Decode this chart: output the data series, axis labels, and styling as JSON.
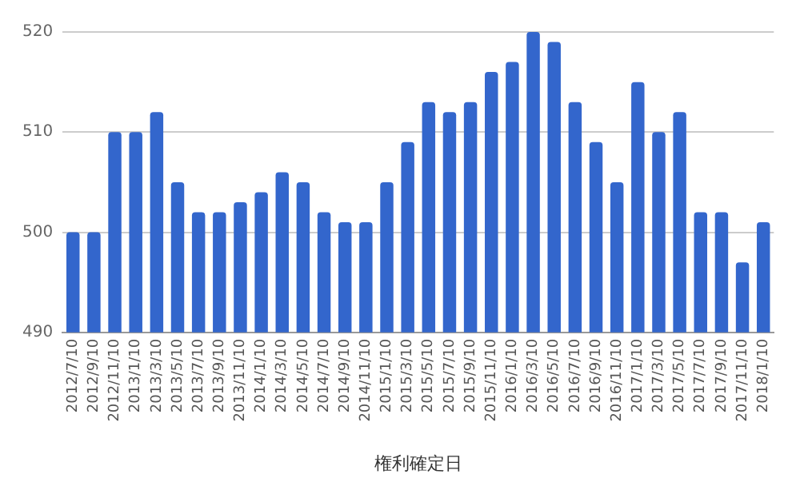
{
  "chart_data": {
    "type": "bar",
    "xlabel": "権利確定日",
    "categories": [
      "2012/7/10",
      "2012/9/10",
      "2012/11/10",
      "2013/1/10",
      "2013/3/10",
      "2013/5/10",
      "2013/7/10",
      "2013/9/10",
      "2013/11/10",
      "2014/1/10",
      "2014/3/10",
      "2014/5/10",
      "2014/7/10",
      "2014/9/10",
      "2014/11/10",
      "2015/1/10",
      "2015/3/10",
      "2015/5/10",
      "2015/7/10",
      "2015/9/10",
      "2015/11/10",
      "2016/1/10",
      "2016/3/10",
      "2016/5/10",
      "2016/7/10",
      "2016/9/10",
      "2016/11/10",
      "2017/1/10",
      "2017/3/10",
      "2017/5/10",
      "2017/7/10",
      "2017/9/10",
      "2017/11/10",
      "2018/1/10"
    ],
    "values": [
      500,
      500,
      510,
      510,
      512,
      505,
      502,
      502,
      503,
      504,
      506,
      505,
      502,
      501,
      501,
      505,
      509,
      513,
      512,
      513,
      516,
      517,
      520,
      519,
      513,
      509,
      505,
      515,
      510,
      512,
      502,
      502,
      497,
      501
    ],
    "color": "#3366cc",
    "ylim": [
      490,
      520
    ],
    "yticks": [
      490,
      500,
      510,
      520
    ],
    "grid": "y",
    "legend": false
  }
}
